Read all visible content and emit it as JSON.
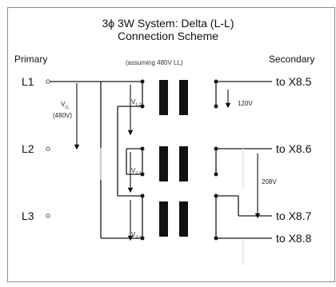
{
  "title": {
    "line1": "3ϕ 3W System: Delta (L-L)",
    "line2": "Connection Scheme"
  },
  "headers": {
    "primary": "Primary",
    "secondary": "Secondary",
    "assumption": "(assuming 480V LL)"
  },
  "terminals": {
    "l1": "L1",
    "l2": "L2",
    "l3": "L3"
  },
  "outputs": {
    "x85": "to X8.5",
    "x86": "to X8.6",
    "x87": "to X8.7",
    "x88": "to X8.8"
  },
  "annotations": {
    "vll_main": "V",
    "vll_main_sub": "LL",
    "vll_value": "(480V)",
    "v12": "V",
    "v12_sub": "1-2",
    "v23": "V",
    "v23_sub": "2-3",
    "v31": "V",
    "v31_sub": "3-1",
    "v120": "120V",
    "v208": "208V"
  },
  "colors": {
    "wire": "#1a1a1a",
    "core": "#111111",
    "arrow": "#111111",
    "frame": "#8a8a8a"
  }
}
